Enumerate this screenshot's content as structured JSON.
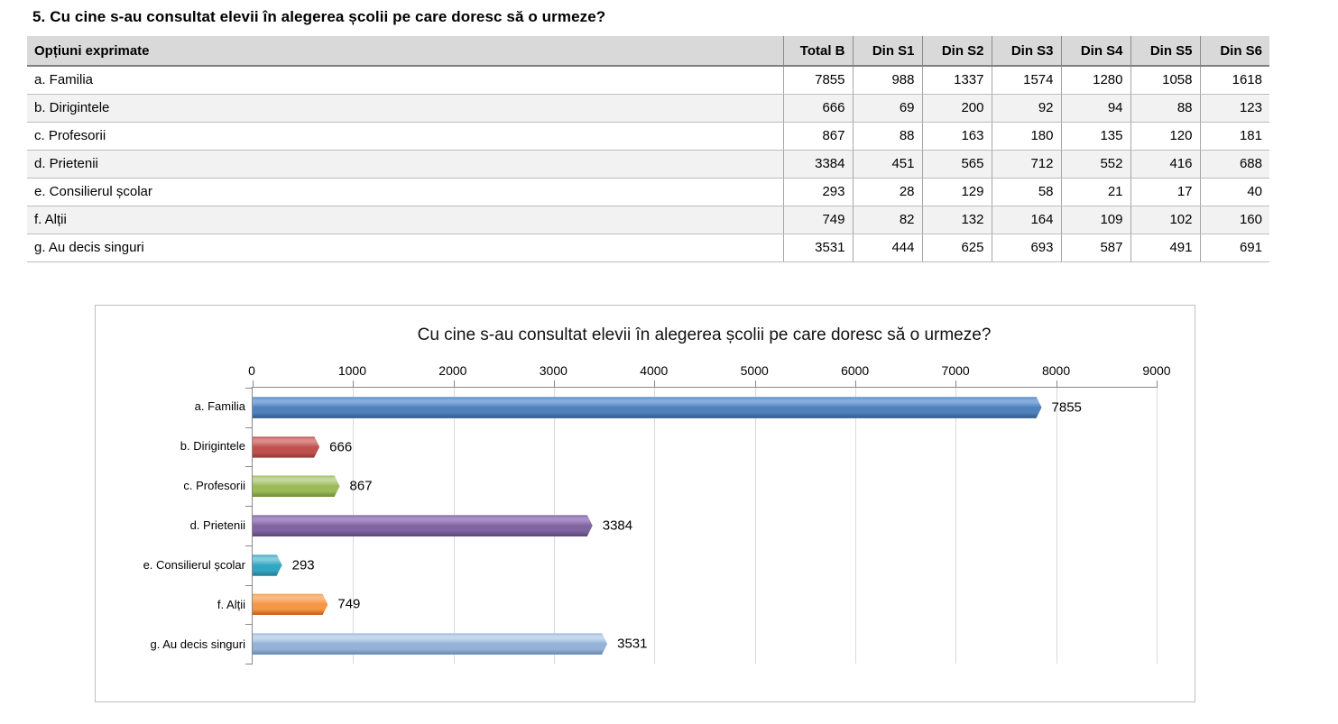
{
  "page": {
    "title": "5. Cu cine s-au consultat elevii în alegerea școlii pe care doresc să o urmeze?"
  },
  "table": {
    "header": [
      "Opțiuni exprimate",
      "Total B",
      "Din S1",
      "Din S2",
      "Din S3",
      "Din S4",
      "Din S5",
      "Din S6"
    ],
    "rows": [
      {
        "label": "a. Familia",
        "values": [
          7855,
          988,
          1337,
          1574,
          1280,
          1058,
          1618
        ]
      },
      {
        "label": "b. Dirigintele",
        "values": [
          666,
          69,
          200,
          92,
          94,
          88,
          123
        ]
      },
      {
        "label": "c. Profesorii",
        "values": [
          867,
          88,
          163,
          180,
          135,
          120,
          181
        ]
      },
      {
        "label": "d. Prietenii",
        "values": [
          3384,
          451,
          565,
          712,
          552,
          416,
          688
        ]
      },
      {
        "label": "e. Consilierul școlar",
        "values": [
          293,
          28,
          129,
          58,
          21,
          17,
          40
        ]
      },
      {
        "label": "f. Alții",
        "values": [
          749,
          82,
          132,
          164,
          109,
          102,
          160
        ]
      },
      {
        "label": "g. Au decis singuri",
        "values": [
          3531,
          444,
          625,
          693,
          587,
          491,
          691
        ]
      }
    ]
  },
  "chart_data": {
    "type": "bar",
    "orientation": "horizontal",
    "title": "Cu cine s-au consultat elevii în alegerea școlii pe care doresc să o urmeze?",
    "categories": [
      "a. Familia",
      "b. Dirigintele",
      "c. Profesorii",
      "d. Prietenii",
      "e. Consilierul școlar",
      "f. Alții",
      "g. Au decis singuri"
    ],
    "values": [
      7855,
      666,
      867,
      3384,
      293,
      749,
      3531
    ],
    "xlim": [
      0,
      9000
    ],
    "x_ticks": [
      0,
      1000,
      2000,
      3000,
      4000,
      5000,
      6000,
      7000,
      8000,
      9000
    ],
    "grid": true,
    "legend": false,
    "bar_colors": [
      {
        "light": "#85AEDC",
        "main": "#4F81BD",
        "dark": "#2D5985"
      },
      {
        "light": "#D98C8A",
        "main": "#C0504D",
        "dark": "#8C3836"
      },
      {
        "light": "#C3D69B",
        "main": "#9BBB59",
        "dark": "#6E8B3A"
      },
      {
        "light": "#A98FC6",
        "main": "#8064A2",
        "dark": "#5A4676"
      },
      {
        "light": "#83CBDD",
        "main": "#31A6C2",
        "dark": "#26798C"
      },
      {
        "light": "#FAB97E",
        "main": "#F79646",
        "dark": "#C55A11"
      },
      {
        "light": "#C4D8EE",
        "main": "#95B3D7",
        "dark": "#6588B4"
      }
    ]
  }
}
